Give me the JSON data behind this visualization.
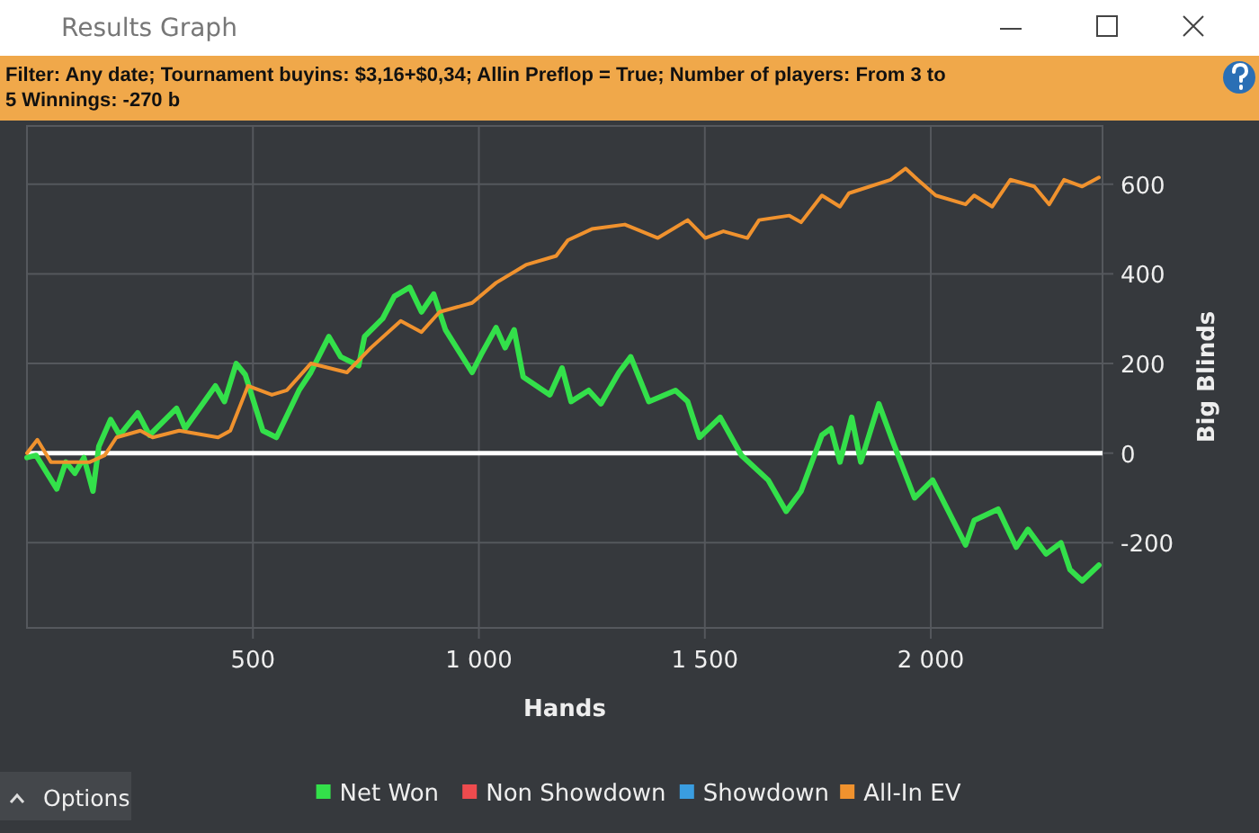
{
  "chart_data": {
    "type": "line",
    "title": "Results Graph",
    "subtitle": "Filter: Any date; Tournament buyins: $3,16+$0,34; Allin Preflop = True; Number of players: From 3 to 5 Winnings: -270 b",
    "xlabel": "Hands",
    "ylabel": "Big Blinds",
    "xlim": [
      0,
      2380
    ],
    "ylim": [
      -390,
      730
    ],
    "xticks": [
      500,
      {
        "value": 1000,
        "label": "1 000"
      },
      {
        "value": 1500,
        "label": "1 500"
      },
      {
        "value": 2000,
        "label": "2 000"
      }
    ],
    "yticks": [
      -200,
      0,
      200,
      400,
      600
    ],
    "grid": true,
    "legend": "bottom",
    "marker": "none",
    "line_style": "solid",
    "ref_lines": [
      {
        "axis": "y",
        "value": 0,
        "color": "#ffffff"
      }
    ],
    "annotations": [
      "Options"
    ],
    "series": [
      {
        "name": "Net Won",
        "color": "#33e04a",
        "x": [
          0,
          20,
          66,
          86,
          106,
          126,
          146,
          159,
          185,
          205,
          245,
          271,
          331,
          350,
          417,
          437,
          463,
          483,
          522,
          552,
          602,
          628,
          668,
          694,
          734,
          747,
          787,
          813,
          847,
          873,
          900,
          926,
          985,
          1005,
          1038,
          1058,
          1078,
          1098,
          1157,
          1184,
          1204,
          1243,
          1270,
          1310,
          1336,
          1376,
          1435,
          1462,
          1488,
          1534,
          1581,
          1640,
          1680,
          1713,
          1759,
          1779,
          1799,
          1825,
          1845,
          1885,
          1918,
          1964,
          2004,
          2077,
          2096,
          2149,
          2189,
          2215,
          2255,
          2288,
          2308,
          2335,
          2372
        ],
        "values": [
          -10,
          -5,
          -80,
          -20,
          -45,
          -10,
          -85,
          15,
          75,
          40,
          90,
          40,
          100,
          55,
          150,
          115,
          200,
          175,
          50,
          35,
          140,
          180,
          260,
          215,
          195,
          260,
          300,
          350,
          370,
          315,
          355,
          275,
          180,
          220,
          280,
          235,
          275,
          170,
          130,
          190,
          115,
          140,
          110,
          180,
          215,
          115,
          140,
          115,
          35,
          80,
          -5,
          -60,
          -130,
          -85,
          40,
          55,
          -20,
          80,
          -20,
          110,
          20,
          -100,
          -60,
          -205,
          -150,
          -125,
          -210,
          -170,
          -225,
          -200,
          -260,
          -285,
          -250
        ]
      },
      {
        "name": "Non Showdown",
        "color": "#ee4b4e"
      },
      {
        "name": "Showdown",
        "color": "#3a9de0"
      },
      {
        "name": "All-In EV",
        "color": "#f0922e",
        "x": [
          0,
          23,
          53,
          139,
          172,
          198,
          251,
          278,
          337,
          423,
          450,
          489,
          542,
          575,
          628,
          708,
          761,
          827,
          873,
          913,
          985,
          1038,
          1104,
          1171,
          1197,
          1250,
          1323,
          1396,
          1462,
          1501,
          1541,
          1594,
          1620,
          1687,
          1713,
          1759,
          1799,
          1819,
          1911,
          1944,
          1971,
          2011,
          2077,
          2096,
          2136,
          2176,
          2229,
          2262,
          2295,
          2335,
          2372
        ],
        "values": [
          0,
          30,
          -20,
          -20,
          -5,
          35,
          50,
          35,
          50,
          35,
          50,
          150,
          130,
          140,
          200,
          180,
          235,
          295,
          270,
          315,
          335,
          380,
          420,
          440,
          475,
          500,
          510,
          480,
          520,
          480,
          495,
          480,
          520,
          530,
          515,
          575,
          550,
          580,
          610,
          635,
          610,
          575,
          555,
          575,
          550,
          610,
          595,
          555,
          610,
          595,
          615
        ]
      }
    ]
  }
}
